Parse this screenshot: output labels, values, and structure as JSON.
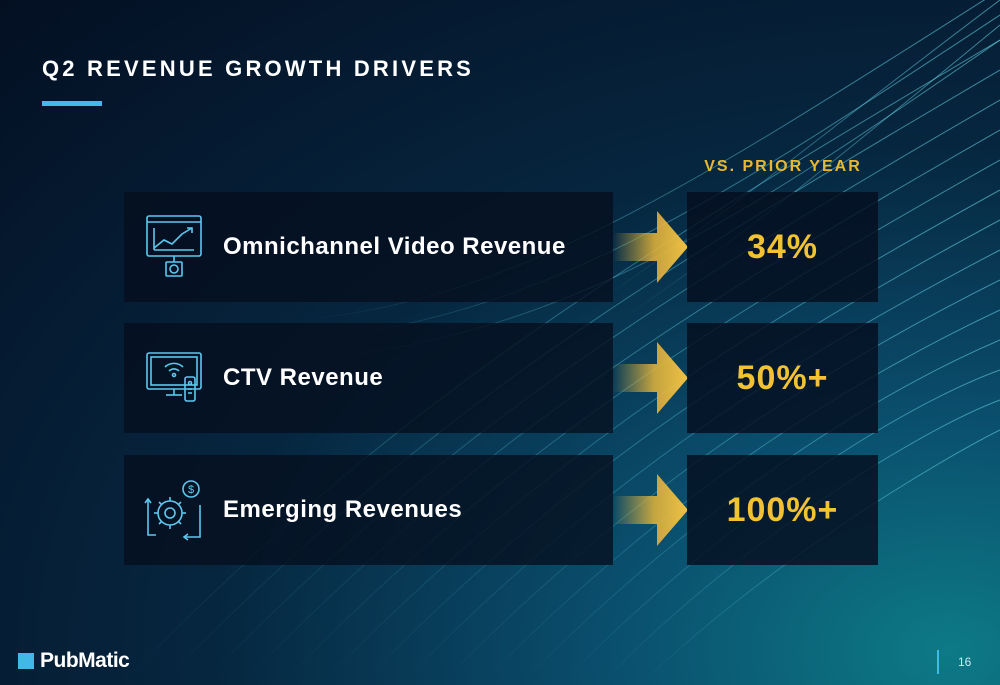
{
  "slide": {
    "title": "Q2 REVENUE GROWTH DRIVERS",
    "column_header": "VS. PRIOR YEAR",
    "drivers": [
      {
        "label": "Omnichannel Video Revenue",
        "value": "34%",
        "icon": "monitor-chart-icon"
      },
      {
        "label": "CTV Revenue",
        "value": "50%+",
        "icon": "tv-remote-icon"
      },
      {
        "label": "Emerging Revenues",
        "value": "100%+",
        "icon": "gear-dollar-icon"
      }
    ],
    "page_number": "16"
  },
  "brand": {
    "name": "PubMatic",
    "accent_color": "#3fbbe8",
    "value_color": "#f2c233"
  }
}
